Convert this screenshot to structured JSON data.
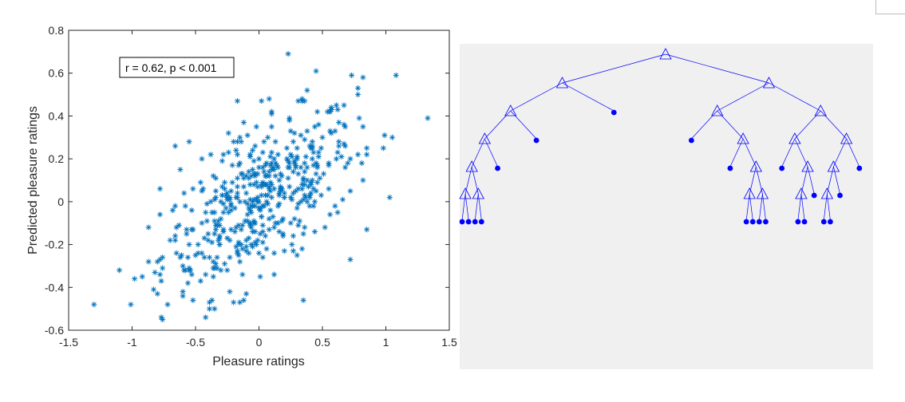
{
  "chart_data": [
    {
      "type": "scatter",
      "title": "",
      "xlabel": "Pleasure ratings",
      "ylabel": "Predicted pleasure ratings",
      "xlim": [
        -1.5,
        1.5
      ],
      "ylim": [
        -0.6,
        0.8
      ],
      "xticks": [
        "-1.5",
        "-1",
        "-0.5",
        "0",
        "0.5",
        "1",
        "1.5"
      ],
      "yticks": [
        "-0.6",
        "-0.4",
        "-0.2",
        "0",
        "0.2",
        "0.4",
        "0.6",
        "0.8"
      ],
      "annotation": "r = 0.62, p < 0.001",
      "grid": false,
      "marker": "*",
      "color": "#0072BD",
      "points": [
        [
          0.23,
          0.69
        ],
        [
          1.08,
          0.59
        ],
        [
          0.45,
          0.61
        ],
        [
          0.73,
          0.59
        ],
        [
          0.82,
          0.58
        ],
        [
          1.33,
          0.39
        ],
        [
          0.99,
          0.31
        ],
        [
          0.98,
          0.25
        ],
        [
          -1.3,
          -0.48
        ],
        [
          -0.92,
          -0.35
        ],
        [
          -0.98,
          -0.36
        ],
        [
          -0.87,
          -0.28
        ],
        [
          -0.8,
          -0.43
        ],
        [
          -0.77,
          -0.54
        ],
        [
          -0.42,
          -0.54
        ],
        [
          0.35,
          -0.46
        ],
        [
          0.72,
          -0.27
        ],
        [
          -0.78,
          0.06
        ],
        [
          -0.62,
          0.15
        ],
        [
          -0.66,
          0.26
        ],
        [
          -0.55,
          0.28
        ],
        [
          -0.38,
          0.22
        ],
        [
          0.02,
          0.47
        ],
        [
          0.08,
          0.48
        ],
        [
          0.38,
          0.52
        ],
        [
          0.34,
          0.47
        ],
        [
          0.46,
          0.42
        ],
        [
          0.57,
          0.44
        ],
        [
          0.67,
          0.45
        ],
        [
          0.78,
          0.5
        ],
        [
          0.68,
          0.35
        ],
        [
          0.24,
          0.38
        ],
        [
          0.13,
          0.28
        ],
        [
          -0.12,
          0.37
        ],
        [
          -0.15,
          0.3
        ],
        [
          -0.2,
          0.28
        ],
        [
          0.82,
          0.35
        ],
        [
          0.85,
          0.25
        ],
        [
          0.78,
          0.22
        ],
        [
          0.1,
          0.42
        ],
        [
          -0.7,
          -0.18
        ],
        [
          -0.82,
          -0.33
        ],
        [
          -0.6,
          -0.44
        ],
        [
          -0.35,
          -0.5
        ],
        [
          -0.2,
          -0.47
        ],
        [
          -0.1,
          -0.43
        ],
        [
          0.12,
          -0.34
        ],
        [
          0.3,
          -0.25
        ],
        [
          0.52,
          -0.12
        ],
        [
          0.6,
          -0.02
        ],
        [
          0.72,
          0.05
        ],
        [
          0.82,
          0.1
        ],
        [
          -0.45,
          0.05
        ],
        [
          -0.3,
          -0.08
        ],
        [
          -0.18,
          -0.12
        ],
        [
          -0.05,
          -0.02
        ],
        [
          0.05,
          0.08
        ],
        [
          0.18,
          0.12
        ],
        [
          0.3,
          0.2
        ],
        [
          0.42,
          0.25
        ],
        [
          0.55,
          0.18
        ],
        [
          0.63,
          0.28
        ],
        [
          -0.5,
          -0.25
        ],
        [
          -0.25,
          -0.32
        ],
        [
          -0.1,
          -0.18
        ],
        [
          0.2,
          0.02
        ],
        [
          0.35,
          0.1
        ],
        [
          0.45,
          0.05
        ],
        [
          0.5,
          0.3
        ],
        [
          0.28,
          0.32
        ],
        [
          0.12,
          0.2
        ],
        [
          -0.05,
          0.15
        ],
        [
          -0.22,
          0.05
        ],
        [
          -0.35,
          -0.15
        ],
        [
          -0.55,
          -0.32
        ],
        [
          -0.65,
          -0.12
        ],
        [
          -0.42,
          -0.05
        ],
        [
          0.08,
          -0.08
        ],
        [
          0.25,
          -0.1
        ],
        [
          0.4,
          -0.02
        ]
      ]
    },
    {
      "type": "tree",
      "title": "",
      "node_color": "#0000FF",
      "background": "#F0F0F0"
    }
  ]
}
